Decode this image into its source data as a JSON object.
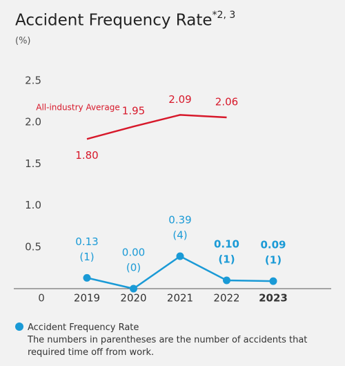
{
  "chart_data": {
    "type": "line",
    "title": "Accident Frequency Rate",
    "title_note": "*2, 3",
    "y_label": "(%)",
    "categories": [
      "2019",
      "2020",
      "2021",
      "2022",
      "2023"
    ],
    "series": [
      {
        "name": "Accident Frequency Rate",
        "color": "#1a9ad6",
        "values": [
          0.13,
          0.0,
          0.39,
          0.1,
          0.09
        ],
        "value_labels": [
          "0.13",
          "0.00",
          "0.39",
          "0.10",
          "0.09"
        ],
        "counts": [
          "(1)",
          "(0)",
          "(4)",
          "(1)",
          "(1)"
        ]
      },
      {
        "name": "All-industry Average",
        "color": "#d7182a",
        "values": [
          1.8,
          1.95,
          2.09,
          2.06,
          null
        ],
        "value_labels": [
          "1.80",
          "1.95",
          "2.09",
          "2.06",
          null
        ]
      }
    ],
    "ylim": [
      0,
      2.5
    ],
    "yticks": [
      0,
      0.5,
      {
        "value": 1,
        "label": "1.0"
      },
      1.5,
      {
        "value": 2,
        "label": "2.0"
      },
      2.5
    ],
    "grid": false,
    "note": "The numbers in parentheses are the number of accidents that required time off from work."
  }
}
